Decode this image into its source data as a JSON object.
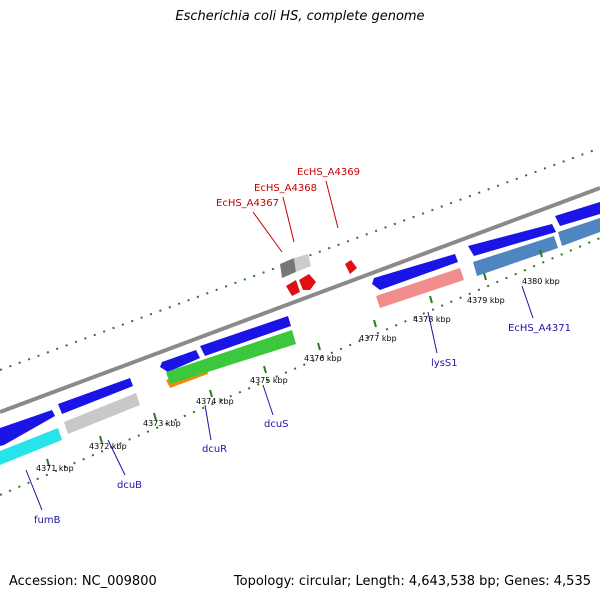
{
  "title": "Escherichia coli HS, complete genome",
  "footer": {
    "accession": "Accession: NC_009800",
    "topology": "Topology: circular; Length: 4,643,538 bp; Genes: 4,535"
  },
  "colors": {
    "backbone": "#888888",
    "tick_dash": "#2a7a1e",
    "forward_cds": "#1a14e6",
    "label_blue": "#1d14a3",
    "label_red": "#c40000"
  },
  "scale_labels": [
    "4371 kbp",
    "4372 kbp",
    "4373 kbp",
    "4374 kbp",
    "4375 kbp",
    "4376 kbp",
    "4377 kbp",
    "4378 kbp",
    "4379 kbp",
    "4380 kbp"
  ],
  "genes": [
    {
      "name": "fumB",
      "color": "#28e4ea"
    },
    {
      "name": "dcuB",
      "color": "#c8c8c8"
    },
    {
      "name": "dcuR",
      "color": "#f08a0a"
    },
    {
      "name": "dcuS",
      "color": "#3cc83c"
    },
    {
      "name": "lysS1",
      "color": "#f08c8c"
    },
    {
      "name": "EcHS_A4371",
      "color": "#4f86c0"
    },
    {
      "name": "EcHS_A4367",
      "color": "#e01010"
    },
    {
      "name": "EcHS_A4368",
      "color": "#e01010"
    },
    {
      "name": "EcHS_A4369",
      "color": "#e01010"
    }
  ]
}
